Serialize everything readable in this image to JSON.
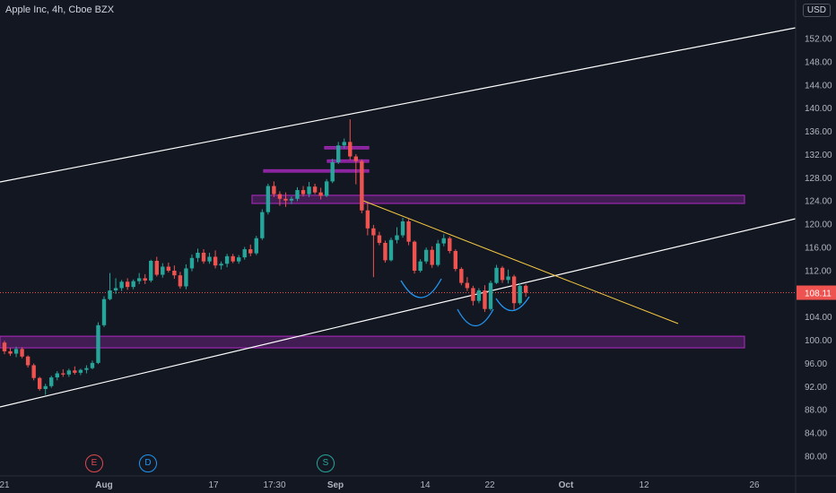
{
  "header": {
    "title": "Apple Inc, 4h, Cboe BZX",
    "currency": "USD"
  },
  "events": [
    {
      "letter": "E",
      "kind": "earnings"
    },
    {
      "letter": "D",
      "kind": "dividend"
    },
    {
      "letter": "S",
      "kind": "split"
    }
  ],
  "colors": {
    "background": "#131722",
    "up": "#26a69a",
    "down": "#ef5350",
    "zone": "#9c27b0",
    "trend": "#ffffff",
    "resistance": "#f5c842",
    "pattern": "#2196f3",
    "price_line": "#ef5350",
    "axis_text": "#b2b5be"
  },
  "chart_data": {
    "type": "candlestick",
    "symbol": "Apple Inc",
    "interval": "4h",
    "exchange": "Cboe BZX",
    "currency": "USD",
    "grid": false,
    "ylim": [
      78,
      154
    ],
    "y_ticks": [
      80,
      84,
      88,
      92,
      96,
      100,
      104,
      108,
      112,
      116,
      120,
      124,
      128,
      132,
      136,
      140,
      144,
      148,
      152
    ],
    "y_tick_labels": [
      "80.00",
      "84.00",
      "88.00",
      "92.00",
      "96.00",
      "100.00",
      "104.00",
      "108.00",
      "112.00",
      "116.00",
      "120.00",
      "124.00",
      "128.00",
      "132.00",
      "136.00",
      "140.00",
      "144.00",
      "148.00",
      "152.00"
    ],
    "x_tick_labels": [
      "21",
      "Aug",
      "17",
      "17:30",
      "Sep",
      "14",
      "22",
      "Oct",
      "12",
      "26"
    ],
    "last_price": 108.11,
    "last_price_label": "108.11",
    "ohlc": [
      [
        99.5,
        99.8,
        97.5,
        98.0
      ],
      [
        98.0,
        98.6,
        97.2,
        97.6
      ],
      [
        97.6,
        98.8,
        97.0,
        98.4
      ],
      [
        98.4,
        98.7,
        96.8,
        97.1
      ],
      [
        97.1,
        97.3,
        95.2,
        95.6
      ],
      [
        95.6,
        95.9,
        93.0,
        93.4
      ],
      [
        93.4,
        93.6,
        91.2,
        91.5
      ],
      [
        91.5,
        92.4,
        90.5,
        92.0
      ],
      [
        92.0,
        93.8,
        91.7,
        93.5
      ],
      [
        93.5,
        94.6,
        93.0,
        94.2
      ],
      [
        94.2,
        94.9,
        93.6,
        94.0
      ],
      [
        94.0,
        95.0,
        93.6,
        94.7
      ],
      [
        94.7,
        95.4,
        94.0,
        94.3
      ],
      [
        94.3,
        95.0,
        93.9,
        94.8
      ],
      [
        94.8,
        95.6,
        94.2,
        95.1
      ],
      [
        95.1,
        96.4,
        94.9,
        96.0
      ],
      [
        96.0,
        103.0,
        95.8,
        102.5
      ],
      [
        102.5,
        107.5,
        102.2,
        107.0
      ],
      [
        107.0,
        111.5,
        106.8,
        108.5
      ],
      [
        108.5,
        110.6,
        107.9,
        108.9
      ],
      [
        108.9,
        110.3,
        108.4,
        110.0
      ],
      [
        110.0,
        110.6,
        108.6,
        109.1
      ],
      [
        109.1,
        110.4,
        108.7,
        110.1
      ],
      [
        110.1,
        111.5,
        109.6,
        110.6
      ],
      [
        110.6,
        111.3,
        109.6,
        110.2
      ],
      [
        110.2,
        113.8,
        109.9,
        113.6
      ],
      [
        113.6,
        114.3,
        110.9,
        111.2
      ],
      [
        111.2,
        113.2,
        110.7,
        112.6
      ],
      [
        112.6,
        113.3,
        111.6,
        111.9
      ],
      [
        111.9,
        112.8,
        110.5,
        111.1
      ],
      [
        111.1,
        111.7,
        108.8,
        109.2
      ],
      [
        109.2,
        113.0,
        108.7,
        112.3
      ],
      [
        112.3,
        114.7,
        111.8,
        114.1
      ],
      [
        114.1,
        115.7,
        113.4,
        115.0
      ],
      [
        115.0,
        115.6,
        113.1,
        113.5
      ],
      [
        113.5,
        115.0,
        113.1,
        114.3
      ],
      [
        114.3,
        115.4,
        112.3,
        112.8
      ],
      [
        112.8,
        113.5,
        112.1,
        113.1
      ],
      [
        113.1,
        114.8,
        112.5,
        114.4
      ],
      [
        114.4,
        114.8,
        113.2,
        113.5
      ],
      [
        113.5,
        114.6,
        113.1,
        114.2
      ],
      [
        114.2,
        116.0,
        113.8,
        115.6
      ],
      [
        115.6,
        116.4,
        114.4,
        114.9
      ],
      [
        114.9,
        117.9,
        114.6,
        117.5
      ],
      [
        117.5,
        122.5,
        117.2,
        122.0
      ],
      [
        122.0,
        126.9,
        121.6,
        126.5
      ],
      [
        126.5,
        127.3,
        124.6,
        125.1
      ],
      [
        125.1,
        125.6,
        123.1,
        124.3
      ],
      [
        124.3,
        125.4,
        122.9,
        124.0
      ],
      [
        124.0,
        124.7,
        123.4,
        124.3
      ],
      [
        124.3,
        126.3,
        123.9,
        125.8
      ],
      [
        125.8,
        126.5,
        124.7,
        125.1
      ],
      [
        125.1,
        127.2,
        124.6,
        126.4
      ],
      [
        126.4,
        126.9,
        125.1,
        125.4
      ],
      [
        125.4,
        126.2,
        124.2,
        124.8
      ],
      [
        124.8,
        127.7,
        124.6,
        127.3
      ],
      [
        127.3,
        131.2,
        127.0,
        130.6
      ],
      [
        130.6,
        134.1,
        130.3,
        133.5
      ],
      [
        133.5,
        134.7,
        133.0,
        134.1
      ],
      [
        134.1,
        138.0,
        131.0,
        131.6
      ],
      [
        131.6,
        132.0,
        126.8,
        130.8
      ],
      [
        130.8,
        131.1,
        121.8,
        122.3
      ],
      [
        122.3,
        123.6,
        118.0,
        119.2
      ],
      [
        119.2,
        119.8,
        110.8,
        118.0
      ],
      [
        118.0,
        118.6,
        116.3,
        116.7
      ],
      [
        116.7,
        117.1,
        113.3,
        113.7
      ],
      [
        113.7,
        117.6,
        113.5,
        117.2
      ],
      [
        117.2,
        119.4,
        116.6,
        118.0
      ],
      [
        118.0,
        121.0,
        117.6,
        120.4
      ],
      [
        120.4,
        120.8,
        116.3,
        116.9
      ],
      [
        116.9,
        117.1,
        111.4,
        111.9
      ],
      [
        111.9,
        113.9,
        111.6,
        113.5
      ],
      [
        113.5,
        115.9,
        113.1,
        115.5
      ],
      [
        115.5,
        116.1,
        112.4,
        112.9
      ],
      [
        112.9,
        117.2,
        112.6,
        116.6
      ],
      [
        116.6,
        118.2,
        116.1,
        117.5
      ],
      [
        117.5,
        117.8,
        114.9,
        115.3
      ],
      [
        115.3,
        115.6,
        111.8,
        112.2
      ],
      [
        112.2,
        112.5,
        109.4,
        109.8
      ],
      [
        109.8,
        110.8,
        108.4,
        108.9
      ],
      [
        108.9,
        109.3,
        105.9,
        106.7
      ],
      [
        106.7,
        108.9,
        106.3,
        108.5
      ],
      [
        108.5,
        109.4,
        104.8,
        105.3
      ],
      [
        105.3,
        110.2,
        105.0,
        109.8
      ],
      [
        109.8,
        112.9,
        109.6,
        112.4
      ],
      [
        112.4,
        112.7,
        109.8,
        110.3
      ],
      [
        110.3,
        112.1,
        109.7,
        110.9
      ],
      [
        110.9,
        111.2,
        105.2,
        106.3
      ],
      [
        106.3,
        109.8,
        106.0,
        109.3
      ],
      [
        109.3,
        109.6,
        107.4,
        108.1
      ]
    ],
    "overlays": {
      "horizontal_zones": [
        {
          "y_range": [
            98.6,
            100.6
          ]
        },
        {
          "y_range": [
            123.5,
            124.9
          ]
        },
        {
          "y_range": [
            128.9,
            129.3
          ]
        },
        {
          "y_range": [
            130.6,
            131.0
          ]
        },
        {
          "y_range": [
            132.9,
            133.3
          ]
        }
      ],
      "lines": [
        {
          "name": "upper channel"
        },
        {
          "name": "lower channel"
        },
        {
          "name": "descending trendline"
        }
      ],
      "pattern": "inverse head and shoulders"
    }
  }
}
